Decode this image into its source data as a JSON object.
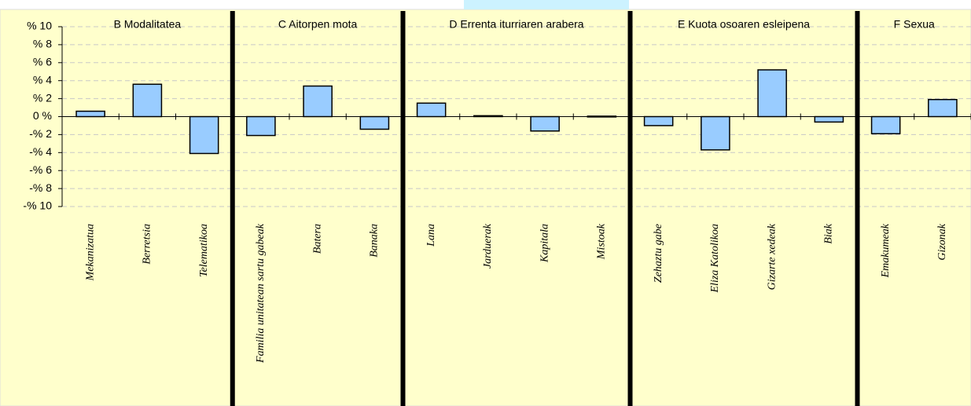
{
  "chart_data": {
    "type": "bar",
    "color": "#99ccff",
    "grid": true,
    "ylim": [
      -10,
      10
    ],
    "yticks": [
      {
        "value": -10,
        "label": "-% 10"
      },
      {
        "value": -8,
        "label": "-% 8"
      },
      {
        "value": -6,
        "label": "-% 6"
      },
      {
        "value": -4,
        "label": "-% 4"
      },
      {
        "value": -2,
        "label": "-% 2"
      },
      {
        "value": 0,
        "label": "0 %"
      },
      {
        "value": 2,
        "label": "% 2"
      },
      {
        "value": 4,
        "label": "% 4"
      },
      {
        "value": 6,
        "label": "% 6"
      },
      {
        "value": 8,
        "label": "% 8"
      },
      {
        "value": 10,
        "label": "% 10"
      }
    ],
    "groups": [
      {
        "name": "B Modalitatea",
        "categories": [
          "Mekanizatua",
          "Berretsia",
          "Telematikoa"
        ],
        "values": [
          0.6,
          3.6,
          -4.1
        ]
      },
      {
        "name": "C Aitorpen mota",
        "categories": [
          "Familia unitatean sartu gabeak",
          "Batera",
          "Banaka"
        ],
        "values": [
          -2.1,
          3.4,
          -1.4
        ]
      },
      {
        "name": "D Errenta iturriaren arabera",
        "categories": [
          "Lana",
          "Jarduerak",
          "Kapitala",
          "Mistoak"
        ],
        "values": [
          1.5,
          0.1,
          -1.6,
          0.05
        ]
      },
      {
        "name": "E Kuota osoaren esleipena",
        "categories": [
          "Zehaztu gabe",
          "Eliza Katolikoa",
          "Gizarte xedeak",
          "Biak"
        ],
        "values": [
          -1.0,
          -3.7,
          5.2,
          -0.6
        ]
      },
      {
        "name": "F Sexua",
        "categories": [
          "Emakumeak",
          "Gizonak"
        ],
        "values": [
          -1.9,
          1.9
        ]
      }
    ]
  }
}
